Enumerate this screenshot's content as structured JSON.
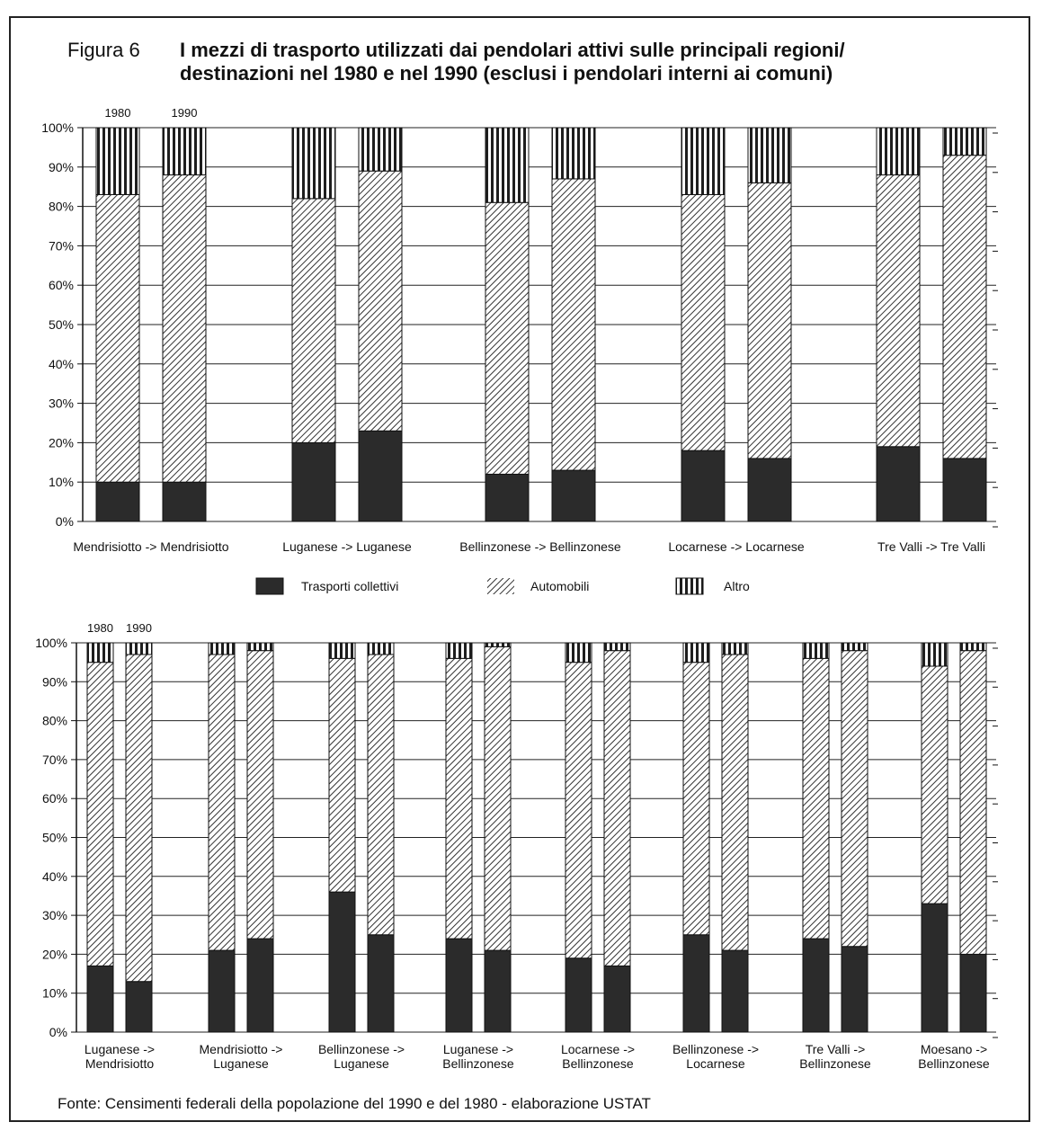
{
  "figure": {
    "label": "Figura 6",
    "title_line1": "I mezzi di trasporto utilizzati dai pendolari attivi sulle principali regioni/",
    "title_line2": "destinazioni nel 1980 e nel 1990 (esclusi i pendolari interni ai comuni)",
    "source": "Fonte: Censimenti federali della popolazione del 1990 e del 1980 - elaborazione USTAT"
  },
  "colors": {
    "collettivi": "#2b2b2b",
    "automobili_stripe": "#3a3a3a",
    "altro_stripe": "#222222",
    "grid": "#222222"
  },
  "legend": {
    "items": [
      {
        "key": "collettivi",
        "label": "Trasporti collettivi",
        "pattern": "solid"
      },
      {
        "key": "automobili",
        "label": "Automobili",
        "pattern": "diagonal-hatch"
      },
      {
        "key": "altro",
        "label": "Altro",
        "pattern": "vertical-stripes"
      }
    ]
  },
  "chart_data": [
    {
      "type": "bar",
      "stacked": true,
      "ylim": [
        0,
        100
      ],
      "yticks": [
        "0%",
        "10%",
        "20%",
        "30%",
        "40%",
        "50%",
        "60%",
        "70%",
        "80%",
        "90%",
        "100%"
      ],
      "year_labels": [
        "1980",
        "1990"
      ],
      "grid": true,
      "categories": [
        {
          "label": [
            "Mendrisiotto -> Mendrisiotto"
          ],
          "bars": [
            {
              "year": "1980",
              "collettivi": 10,
              "automobili": 73,
              "altro": 17
            },
            {
              "year": "1990",
              "collettivi": 10,
              "automobili": 78,
              "altro": 12
            }
          ]
        },
        {
          "label": [
            "Luganese -> Luganese"
          ],
          "bars": [
            {
              "year": "1980",
              "collettivi": 20,
              "automobili": 62,
              "altro": 18
            },
            {
              "year": "1990",
              "collettivi": 23,
              "automobili": 66,
              "altro": 11
            }
          ]
        },
        {
          "label": [
            "Bellinzonese -> Bellinzonese"
          ],
          "bars": [
            {
              "year": "1980",
              "collettivi": 12,
              "automobili": 69,
              "altro": 19
            },
            {
              "year": "1990",
              "collettivi": 13,
              "automobili": 74,
              "altro": 13
            }
          ]
        },
        {
          "label": [
            "Locarnese -> Locarnese"
          ],
          "bars": [
            {
              "year": "1980",
              "collettivi": 18,
              "automobili": 65,
              "altro": 17
            },
            {
              "year": "1990",
              "collettivi": 16,
              "automobili": 70,
              "altro": 14
            }
          ]
        },
        {
          "label": [
            "Tre Valli -> Tre Valli"
          ],
          "bars": [
            {
              "year": "1980",
              "collettivi": 19,
              "automobili": 69,
              "altro": 12
            },
            {
              "year": "1990",
              "collettivi": 16,
              "automobili": 77,
              "altro": 7
            }
          ]
        }
      ]
    },
    {
      "type": "bar",
      "stacked": true,
      "ylim": [
        0,
        100
      ],
      "yticks": [
        "0%",
        "10%",
        "20%",
        "30%",
        "40%",
        "50%",
        "60%",
        "70%",
        "80%",
        "90%",
        "100%"
      ],
      "year_labels": [
        "1980",
        "1990"
      ],
      "grid": true,
      "categories": [
        {
          "label": [
            "Luganese ->",
            "Mendrisiotto"
          ],
          "bars": [
            {
              "year": "1980",
              "collettivi": 17,
              "automobili": 78,
              "altro": 5
            },
            {
              "year": "1990",
              "collettivi": 13,
              "automobili": 84,
              "altro": 3
            }
          ]
        },
        {
          "label": [
            "Mendrisiotto ->",
            "Luganese"
          ],
          "bars": [
            {
              "year": "1980",
              "collettivi": 21,
              "automobili": 76,
              "altro": 3
            },
            {
              "year": "1990",
              "collettivi": 24,
              "automobili": 74,
              "altro": 2
            }
          ]
        },
        {
          "label": [
            "Bellinzonese ->",
            "Luganese"
          ],
          "bars": [
            {
              "year": "1980",
              "collettivi": 36,
              "automobili": 60,
              "altro": 4
            },
            {
              "year": "1990",
              "collettivi": 25,
              "automobili": 72,
              "altro": 3
            }
          ]
        },
        {
          "label": [
            "Luganese ->",
            "Bellinzonese"
          ],
          "bars": [
            {
              "year": "1980",
              "collettivi": 24,
              "automobili": 72,
              "altro": 4
            },
            {
              "year": "1990",
              "collettivi": 21,
              "automobili": 78,
              "altro": 1
            }
          ]
        },
        {
          "label": [
            "Locarnese ->",
            "Bellinzonese"
          ],
          "bars": [
            {
              "year": "1980",
              "collettivi": 19,
              "automobili": 76,
              "altro": 5
            },
            {
              "year": "1990",
              "collettivi": 17,
              "automobili": 81,
              "altro": 2
            }
          ]
        },
        {
          "label": [
            "Bellinzonese ->",
            "Locarnese"
          ],
          "bars": [
            {
              "year": "1980",
              "collettivi": 25,
              "automobili": 70,
              "altro": 5
            },
            {
              "year": "1990",
              "collettivi": 21,
              "automobili": 76,
              "altro": 3
            }
          ]
        },
        {
          "label": [
            "Tre Valli ->",
            "Bellinzonese"
          ],
          "bars": [
            {
              "year": "1980",
              "collettivi": 24,
              "automobili": 72,
              "altro": 4
            },
            {
              "year": "1990",
              "collettivi": 22,
              "automobili": 76,
              "altro": 2
            }
          ]
        },
        {
          "label": [
            "Moesano ->",
            "Bellinzonese"
          ],
          "bars": [
            {
              "year": "1980",
              "collettivi": 33,
              "automobili": 61,
              "altro": 6
            },
            {
              "year": "1990",
              "collettivi": 20,
              "automobili": 78,
              "altro": 2
            }
          ]
        }
      ]
    }
  ]
}
